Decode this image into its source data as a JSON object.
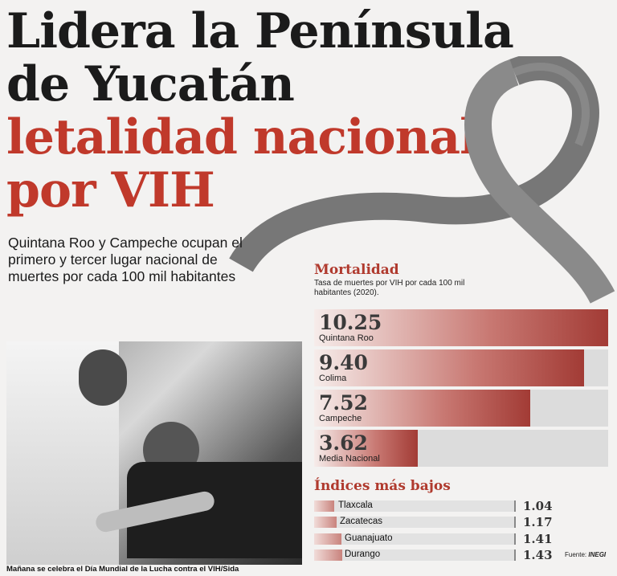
{
  "headline": {
    "line1": "Lidera la Península",
    "line2": "de Yucatán",
    "line3": "letalidad nacional",
    "line4": "por VIH"
  },
  "subtitle": "Quintana Roo y Campeche ocupan el primero y tercer lugar nacional de muertes por cada 100 mil habitantes",
  "caption": "Mañana se celebra el Día Mundial de la Lucha contra el VIH/Sida",
  "source": {
    "label": "Fuente:",
    "name": "INEGI"
  },
  "colors": {
    "accent": "#c0392b",
    "bar_end": "#a23b35",
    "track": "#dcdcdc"
  },
  "chart_data": [
    {
      "type": "bar",
      "title": "Mortalidad",
      "subtitle": "Tasa de muertes por VIH por cada 100 mil habitantes (2020).",
      "categories": [
        "Quintana Roo",
        "Colima",
        "Campeche",
        "Media Nacional"
      ],
      "values": [
        10.25,
        9.4,
        7.52,
        3.62
      ],
      "value_labels": [
        "10.25",
        "9.40",
        "7.52",
        "3.62"
      ],
      "xlim": [
        0,
        10.25
      ]
    },
    {
      "type": "bar",
      "title": "Índices más bajos",
      "categories": [
        "Tlaxcala",
        "Zacatecas",
        "Guanajuato",
        "Durango"
      ],
      "values": [
        1.04,
        1.17,
        1.41,
        1.43
      ],
      "value_labels": [
        "1.04",
        "1.17",
        "1.41",
        "1.43"
      ],
      "xlim": [
        0,
        10.25
      ]
    }
  ]
}
